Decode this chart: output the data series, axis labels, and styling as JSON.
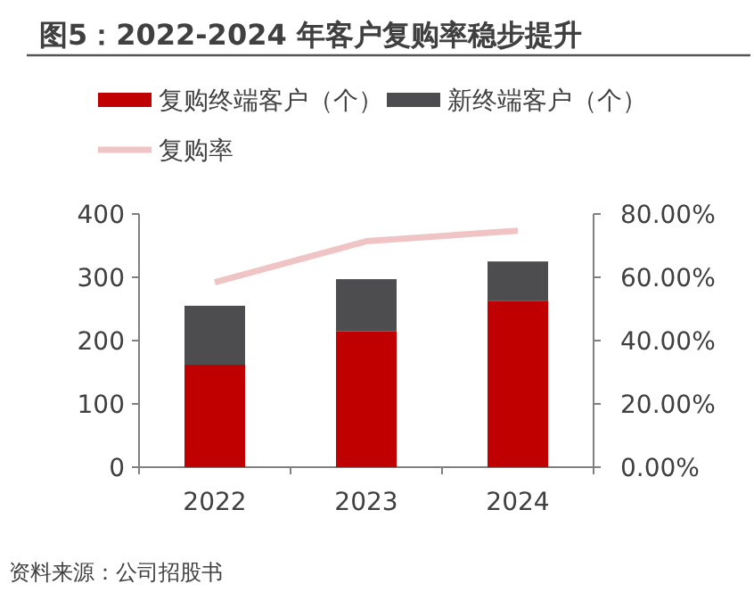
{
  "chart_data": {
    "type": "bar",
    "title": "图5：2022-2024 年客户复购率稳步提升",
    "categories": [
      "2022",
      "2023",
      "2024"
    ],
    "stacked": true,
    "legend": "top",
    "series": [
      {
        "name": "复购终端客户（个）",
        "color": "#c00000",
        "values": [
          162,
          215,
          263
        ]
      },
      {
        "name": "新终端客户（个）",
        "color": "#4d4d4f",
        "values": [
          93,
          82,
          62
        ]
      },
      {
        "name": "复购率",
        "type": "line",
        "axis": "y2",
        "color": "#f0c4c4",
        "values": [
          58.4,
          71.4,
          74.7
        ]
      }
    ],
    "ylim": [
      0,
      400
    ],
    "yticks": [
      0,
      100,
      200,
      300,
      400
    ],
    "y2lim": [
      0,
      80
    ],
    "y2ticks": [
      {
        "value": 0,
        "label": "0.00%"
      },
      {
        "value": 20,
        "label": "20.00%"
      },
      {
        "value": 40,
        "label": "40.00%"
      },
      {
        "value": 60,
        "label": "60.00%"
      },
      {
        "value": 80,
        "label": "80.00%"
      }
    ],
    "annotations": [
      "资料来源：公司招股书"
    ]
  }
}
